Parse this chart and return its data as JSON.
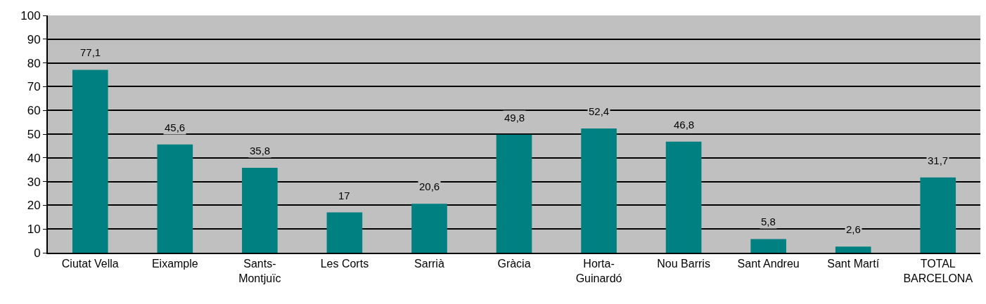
{
  "chart_data": {
    "type": "bar",
    "categories": [
      "Ciutat Vella",
      "Eixample",
      "Sants-\nMontjuïc",
      "Les Corts",
      "Sarrià",
      "Gràcia",
      "Horta-\nGuinardó",
      "Nou Barris",
      "Sant Andreu",
      "Sant Martí",
      "TOTAL\nBARCELONA"
    ],
    "values": [
      77.1,
      45.6,
      35.8,
      17,
      20.6,
      49.8,
      52.4,
      46.8,
      5.8,
      2.6,
      31.7
    ],
    "value_labels": [
      "77,1",
      "45,6",
      "35,8",
      "17",
      "20,6",
      "49,8",
      "52,4",
      "46,8",
      "5,8",
      "2,6",
      "31,7"
    ],
    "color": "#008080",
    "ylim": [
      0,
      100
    ],
    "yticks": [
      0,
      10,
      20,
      30,
      40,
      50,
      60,
      70,
      80,
      90,
      100
    ],
    "grid": "y",
    "legend": false
  }
}
